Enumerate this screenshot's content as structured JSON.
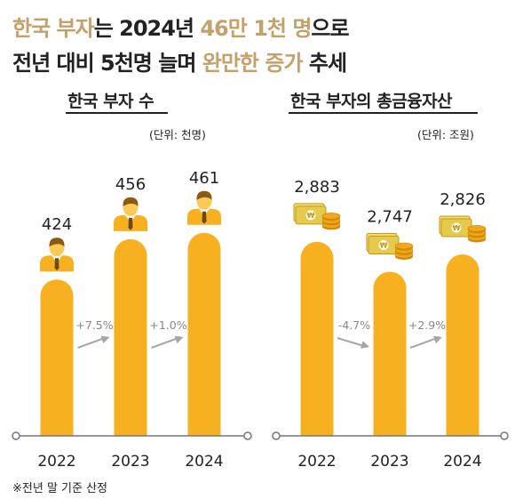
{
  "headline": {
    "line1_prefix": "한국 부자",
    "line1_mid": "는 2024년 ",
    "line1_num": "46만 1천 명",
    "line1_suffix": "으로",
    "line2_prefix": "전년 대비 5천명 늘며 ",
    "line2_hl1": "완만한",
    "line2_space": " ",
    "line2_hl2": "증가",
    "line2_suffix": " 추세"
  },
  "footnote": "※전년 말 기준 산정",
  "colors": {
    "bar": "#f7b01f",
    "accent_text": "#c4a06a",
    "arrow": "#a6a6a6",
    "axis": "#777777",
    "money": "#e6c94d",
    "coin": "#f0a81a"
  },
  "chart_data": [
    {
      "type": "bar",
      "title": "한국 부자 수",
      "unit": "(단위: 천명)",
      "icon": "person-icon",
      "categories": [
        "2022",
        "2023",
        "2024"
      ],
      "values": [
        424,
        456,
        461
      ],
      "value_labels": [
        "424",
        "456",
        "461"
      ],
      "growth_labels": [
        "+7.5%",
        "+1.0%"
      ],
      "growth_direction": [
        "up",
        "up"
      ]
    },
    {
      "type": "bar",
      "title": "한국 부자의 총금융자산",
      "unit": "(단위: 조원)",
      "icon": "money-coins-icon",
      "categories": [
        "2022",
        "2023",
        "2024"
      ],
      "values": [
        2883,
        2747,
        2826
      ],
      "value_labels": [
        "2,883",
        "2,747",
        "2,826"
      ],
      "growth_labels": [
        "-4.7%",
        "+2.9%"
      ],
      "growth_direction": [
        "down",
        "up"
      ]
    }
  ]
}
